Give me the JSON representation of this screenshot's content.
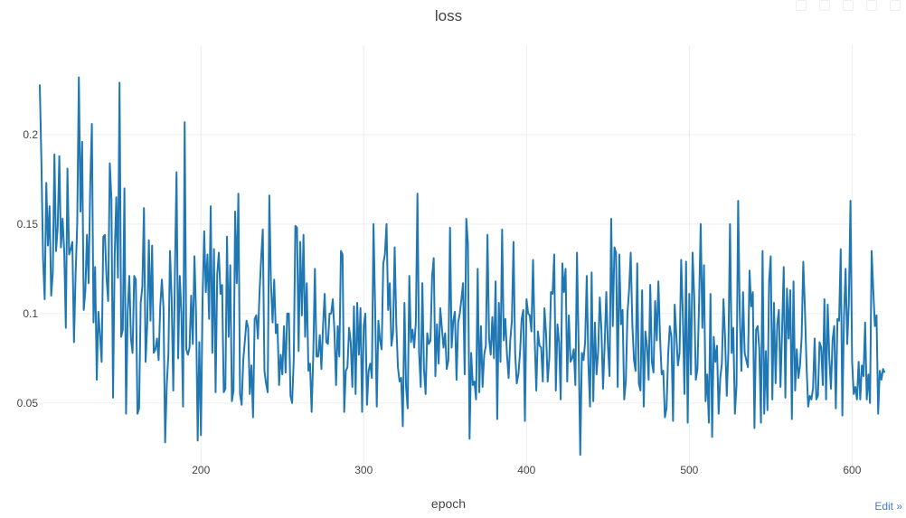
{
  "chart_data": {
    "type": "line",
    "title": "loss",
    "xlabel": "epoch",
    "ylabel": "",
    "xlim": [
      101,
      602
    ],
    "ylim": [
      0.0125,
      0.25
    ],
    "x_ticks": [
      200,
      300,
      400,
      500,
      600
    ],
    "y_ticks": [
      0.05,
      0.1,
      0.15,
      0.2
    ],
    "x_tick_labels": [
      "200",
      "300",
      "400",
      "500",
      "600"
    ],
    "y_tick_labels": [
      "0.05",
      "0.1",
      "0.15",
      "0.2"
    ],
    "grid": true,
    "legend": "none",
    "series": [
      {
        "x_start": 101,
        "x_step": 1,
        "values": [
          0.228,
          0.185,
          0.131,
          0.108,
          0.173,
          0.138,
          0.16,
          0.11,
          0.123,
          0.189,
          0.135,
          0.148,
          0.188,
          0.137,
          0.153,
          0.135,
          0.092,
          0.181,
          0.133,
          0.136,
          0.14,
          0.084,
          0.122,
          0.15,
          0.232,
          0.157,
          0.196,
          0.102,
          0.113,
          0.144,
          0.117,
          0.172,
          0.206,
          0.095,
          0.126,
          0.063,
          0.101,
          0.088,
          0.073,
          0.143,
          0.144,
          0.12,
          0.107,
          0.184,
          0.164,
          0.053,
          0.132,
          0.165,
          0.12,
          0.229,
          0.087,
          0.091,
          0.17,
          0.044,
          0.101,
          0.121,
          0.086,
          0.078,
          0.121,
          0.119,
          0.044,
          0.047,
          0.106,
          0.115,
          0.159,
          0.073,
          0.094,
          0.141,
          0.096,
          0.138,
          0.078,
          0.08,
          0.086,
          0.074,
          0.104,
          0.119,
          0.103,
          0.028,
          0.06,
          0.077,
          0.135,
          0.108,
          0.057,
          0.122,
          0.179,
          0.075,
          0.121,
          0.1,
          0.048,
          0.207,
          0.08,
          0.077,
          0.081,
          0.11,
          0.083,
          0.132,
          0.1,
          0.029,
          0.084,
          0.032,
          0.108,
          0.146,
          0.112,
          0.133,
          0.097,
          0.16,
          0.078,
          0.136,
          0.056,
          0.122,
          0.134,
          0.111,
          0.116,
          0.056,
          0.058,
          0.143,
          0.087,
          0.127,
          0.051,
          0.057,
          0.157,
          0.117,
          0.167,
          0.055,
          0.049,
          0.074,
          0.085,
          0.096,
          0.092,
          0.055,
          0.071,
          0.042,
          0.097,
          0.099,
          0.086,
          0.112,
          0.131,
          0.147,
          0.068,
          0.061,
          0.056,
          0.166,
          0.117,
          0.095,
          0.119,
          0.089,
          0.094,
          0.06,
          0.077,
          0.066,
          0.093,
          0.067,
          0.1,
          0.1,
          0.054,
          0.05,
          0.074,
          0.149,
          0.148,
          0.079,
          0.14,
          0.099,
          0.144,
          0.087,
          0.117,
          0.068,
          0.072,
          0.045,
          0.077,
          0.125,
          0.076,
          0.076,
          0.088,
          0.069,
          0.093,
          0.111,
          0.084,
          0.083,
          0.1,
          0.1,
          0.108,
          0.09,
          0.06,
          0.093,
          0.076,
          0.135,
          0.133,
          0.045,
          0.068,
          0.07,
          0.092,
          0.084,
          0.059,
          0.104,
          0.055,
          0.106,
          0.077,
          0.103,
          0.045,
          0.093,
          0.1,
          0.049,
          0.068,
          0.072,
          0.064,
          0.15,
          0.103,
          0.048,
          0.096,
          0.085,
          0.08,
          0.128,
          0.133,
          0.15,
          0.102,
          0.117,
          0.082,
          0.089,
          0.137,
          0.094,
          0.07,
          0.062,
          0.064,
          0.037,
          0.106,
          0.059,
          0.047,
          0.121,
          0.084,
          0.091,
          0.081,
          0.095,
          0.167,
          0.078,
          0.059,
          0.117,
          0.069,
          0.055,
          0.089,
          0.083,
          0.085,
          0.121,
          0.131,
          0.065,
          0.094,
          0.072,
          0.103,
          0.092,
          0.081,
          0.089,
          0.069,
          0.074,
          0.148,
          0.081,
          0.096,
          0.101,
          0.063,
          0.095,
          0.1,
          0.108,
          0.117,
          0.066,
          0.153,
          0.139,
          0.03,
          0.078,
          0.06,
          0.062,
          0.052,
          0.125,
          0.056,
          0.093,
          0.059,
          0.077,
          0.082,
          0.144,
          0.086,
          0.077,
          0.098,
          0.075,
          0.118,
          0.041,
          0.106,
          0.073,
          0.147,
          0.085,
          0.097,
          0.077,
          0.064,
          0.085,
          0.096,
          0.14,
          0.078,
          0.061,
          0.066,
          0.078,
          0.097,
          0.102,
          0.04,
          0.108,
          0.1,
          0.099,
          0.09,
          0.13,
          0.086,
          0.057,
          0.09,
          0.082,
          0.081,
          0.062,
          0.103,
          0.089,
          0.062,
          0.075,
          0.112,
          0.111,
          0.133,
          0.057,
          0.094,
          0.084,
          0.052,
          0.128,
          0.112,
          0.125,
          0.062,
          0.099,
          0.073,
          0.075,
          0.08,
          0.06,
          0.134,
          0.082,
          0.021,
          0.078,
          0.074,
          0.084,
          0.121,
          0.072,
          0.048,
          0.123,
          0.051,
          0.095,
          0.066,
          0.079,
          0.109,
          0.091,
          0.058,
          0.083,
          0.112,
          0.082,
          0.065,
          0.153,
          0.093,
          0.137,
          0.134,
          0.059,
          0.133,
          0.094,
          0.102,
          0.052,
          0.062,
          0.1,
          0.113,
          0.134,
          0.094,
          0.074,
          0.068,
          0.128,
          0.061,
          0.057,
          0.113,
          0.048,
          0.09,
          0.082,
          0.063,
          0.116,
          0.073,
          0.067,
          0.107,
          0.085,
          0.118,
          0.087,
          0.066,
          0.068,
          0.042,
          0.047,
          0.077,
          0.093,
          0.087,
          0.04,
          0.105,
          0.088,
          0.071,
          0.078,
          0.13,
          0.1,
          0.055,
          0.129,
          0.039,
          0.111,
          0.066,
          0.134,
          0.11,
          0.063,
          0.069,
          0.106,
          0.15,
          0.092,
          0.127,
          0.051,
          0.066,
          0.039,
          0.111,
          0.031,
          0.087,
          0.073,
          0.082,
          0.044,
          0.064,
          0.072,
          0.108,
          0.085,
          0.054,
          0.079,
          0.15,
          0.078,
          0.092,
          0.044,
          0.06,
          0.163,
          0.099,
          0.068,
          0.112,
          0.078,
          0.074,
          0.07,
          0.124,
          0.104,
          0.112,
          0.036,
          0.091,
          0.093,
          0.08,
          0.039,
          0.135,
          0.044,
          0.079,
          0.046,
          0.118,
          0.132,
          0.052,
          0.106,
          0.061,
          0.094,
          0.102,
          0.059,
          0.091,
          0.126,
          0.053,
          0.114,
          0.086,
          0.113,
          0.041,
          0.118,
          0.057,
          0.08,
          0.064,
          0.071,
          0.087,
          0.129,
          0.103,
          0.071,
          0.048,
          0.054,
          0.052,
          0.058,
          0.086,
          0.052,
          0.054,
          0.084,
          0.081,
          0.06,
          0.108,
          0.052,
          0.105,
          0.075,
          0.058,
          0.085,
          0.093,
          0.047,
          0.097,
          0.096,
          0.136,
          0.043,
          0.098,
          0.125,
          0.083,
          0.106,
          0.163,
          0.073,
          0.055,
          0.059,
          0.052,
          0.073,
          0.052,
          0.071,
          0.065,
          0.095,
          0.052,
          0.066,
          0.05,
          0.135,
          0.113,
          0.093,
          0.099,
          0.044,
          0.068,
          0.063,
          0.069,
          0.067
        ]
      }
    ],
    "line_color": "#1f77b4"
  },
  "ui": {
    "edit_label": "Edit »"
  }
}
